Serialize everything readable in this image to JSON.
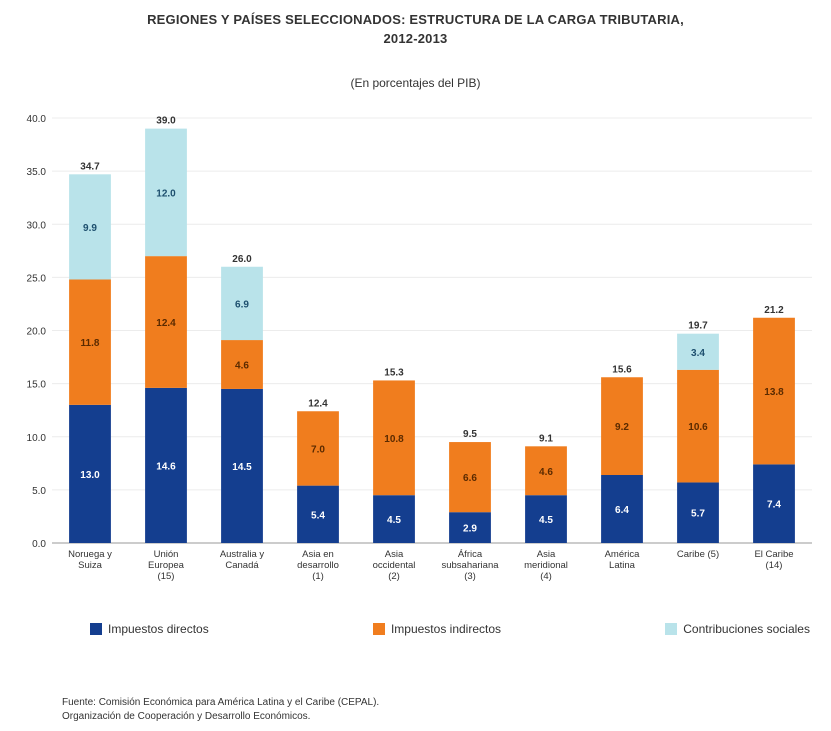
{
  "title_lines": [
    "REGIONES Y PAÍSES SELECCIONADOS: ESTRUCTURA DE LA CARGA TRIBUTARIA,",
    "2012-2013"
  ],
  "subtitle": "(En porcentajes del PIB)",
  "notes": [
    "Fuente: Comisión Económica para América Latina y el Caribe (CEPAL).",
    "Organización de Cooperación y Desarrollo Económicos."
  ],
  "colors": {
    "direct": "#143e8f",
    "indirect": "#f07d1e",
    "social": "#b9e3ea",
    "grid": "#ececec"
  },
  "chart_data": {
    "type": "bar",
    "stacked": true,
    "categories": [
      "Noruega y Suiza",
      "Unión Europea (15)",
      "Australia y Canadá",
      "Asia en desarrollo (1)",
      "Asia occidental (2)",
      "África subsahariana (3)",
      "Asia meridional (4)",
      "América Latina",
      "Caribe (5)",
      "El Caribe (14)"
    ],
    "series": [
      {
        "name": "Impuestos directos",
        "values": [
          13.0,
          14.6,
          14.5,
          5.4,
          4.5,
          2.9,
          4.5,
          6.4,
          5.7,
          7.4
        ],
        "labels": [
          "13.0",
          "14.6",
          "14.5",
          "5.4",
          "4.5",
          "2.9",
          "4.5",
          "6.4",
          "5.7",
          "7.4"
        ]
      },
      {
        "name": "Impuestos indirectos",
        "values": [
          11.8,
          12.4,
          4.6,
          7.0,
          10.8,
          6.6,
          4.6,
          9.2,
          10.6,
          13.8
        ],
        "labels": [
          "11.8",
          "12.4",
          "4.6",
          "7.0",
          "10.8",
          "6.6",
          "4.6",
          "9.2",
          "10.6",
          "13.8"
        ]
      },
      {
        "name": "Contribuciones sociales",
        "values": [
          9.9,
          12.0,
          6.9,
          0,
          0,
          0,
          0,
          0,
          3.4,
          0
        ],
        "labels": [
          "9.9",
          "12.0",
          "6.9",
          "",
          "",
          "",
          "",
          "",
          "3.4",
          ""
        ]
      }
    ],
    "totals": [
      "34.7",
      "39.0",
      "26.0",
      "12.4",
      "15.3",
      "9.5",
      "9.1",
      "15.6",
      "19.7",
      "21.2"
    ],
    "ylim": [
      0,
      40
    ],
    "yticks": [
      "0.0",
      "5.0",
      "10.0",
      "15.0",
      "20.0",
      "25.0",
      "30.0",
      "35.0",
      "40.0"
    ],
    "grid": true,
    "legend_position": "bottom"
  }
}
